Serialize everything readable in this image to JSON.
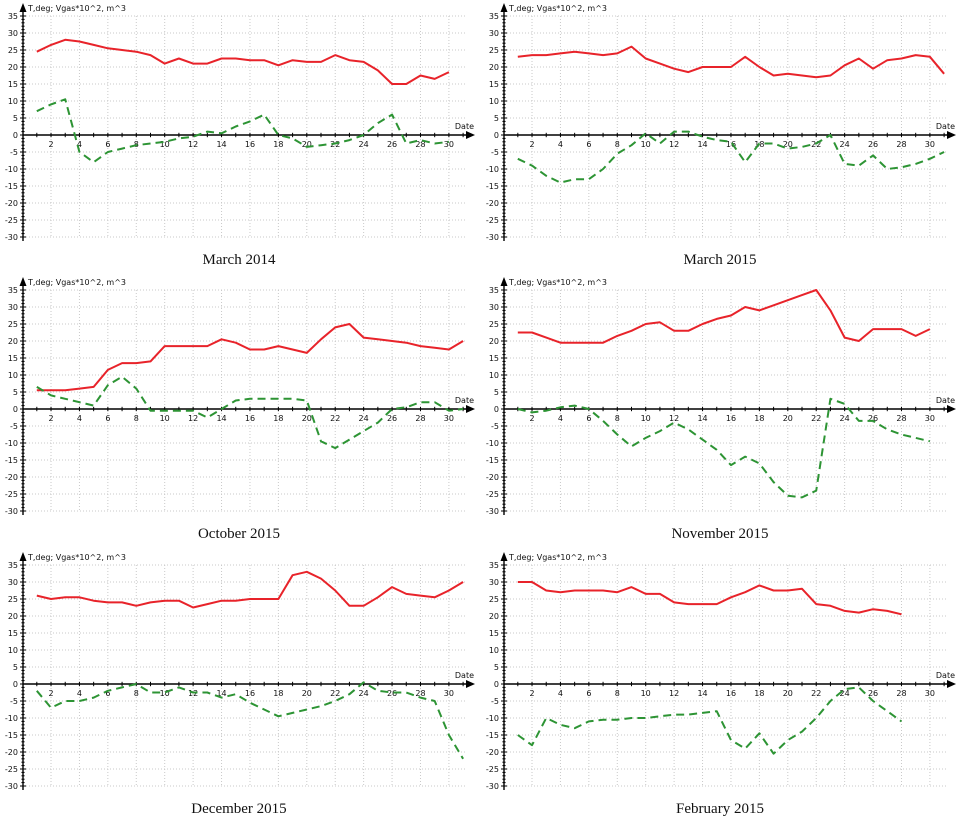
{
  "page": {
    "background": "#ffffff"
  },
  "colors": {
    "temperature_line": "#e8232a",
    "gas_line": "#2d9434",
    "grid": "#c9c9c9",
    "axis": "#000000",
    "tick_text": "#111111"
  },
  "axis": {
    "y_label": "T,deg; Vgas*10^2, m^3",
    "x_label": "Date",
    "x_tick_labels": [
      2,
      4,
      6,
      8,
      10,
      12,
      14,
      16,
      18,
      20,
      22,
      24,
      26,
      28,
      30
    ],
    "y_tick_labels": [
      35,
      30,
      25,
      20,
      15,
      10,
      5,
      0,
      -5,
      -10,
      -15,
      -20,
      -25,
      -30
    ],
    "x_tick_step": 2,
    "y_tick_step": 5
  },
  "chart_data": [
    {
      "type": "line",
      "title": "March 2014",
      "xlabel": "Date",
      "ylabel": "T,deg; Vgas*10^2, m^3",
      "xlim": [
        1,
        31
      ],
      "ylim": [
        -30,
        35
      ],
      "grid": true,
      "legend": "none",
      "x": [
        1,
        2,
        3,
        4,
        5,
        6,
        7,
        8,
        9,
        10,
        11,
        12,
        13,
        14,
        15,
        16,
        17,
        18,
        19,
        20,
        21,
        22,
        23,
        24,
        25,
        26,
        27,
        28,
        29,
        30
      ],
      "series": [
        {
          "name": "T,deg",
          "color": "#e8232a",
          "style": "solid",
          "values": [
            24.5,
            26.5,
            28,
            27.5,
            26.5,
            25.5,
            25,
            24.5,
            23.5,
            21,
            22.5,
            21,
            21,
            22.5,
            22.5,
            22,
            22,
            20.5,
            22,
            21.5,
            21.5,
            23.5,
            22,
            21.5,
            19,
            15,
            15,
            17.5,
            16.5,
            18.5
          ]
        },
        {
          "name": "Vgas*10^2, m^3",
          "color": "#2d9434",
          "style": "dashed",
          "values": [
            7,
            9,
            10.5,
            -5,
            -8,
            -5,
            -4,
            -3,
            -2.5,
            -2,
            -1,
            -0.5,
            1,
            0.5,
            2.5,
            4,
            6,
            0,
            -1,
            -3.5,
            -3,
            -2.5,
            -1.5,
            0,
            3.5,
            6,
            -2.5,
            -1.5,
            -2.5,
            -2
          ]
        }
      ]
    },
    {
      "type": "line",
      "title": "March 2015",
      "xlabel": "Date",
      "ylabel": "T,deg; Vgas*10^2, m^3",
      "xlim": [
        1,
        31
      ],
      "ylim": [
        -30,
        35
      ],
      "grid": true,
      "legend": "none",
      "x": [
        1,
        2,
        3,
        4,
        5,
        6,
        7,
        8,
        9,
        10,
        11,
        12,
        13,
        14,
        15,
        16,
        17,
        18,
        19,
        20,
        21,
        22,
        23,
        24,
        25,
        26,
        27,
        28,
        29,
        30,
        31
      ],
      "series": [
        {
          "name": "T,deg",
          "color": "#e8232a",
          "style": "solid",
          "values": [
            23,
            23.5,
            23.5,
            24,
            24.5,
            24,
            23.5,
            24,
            26,
            22.5,
            21,
            19.5,
            18.5,
            20,
            20,
            20,
            23,
            20,
            17.5,
            18,
            17.5,
            17,
            17.5,
            20.5,
            22.5,
            19.5,
            22,
            22.5,
            23.5,
            23,
            18
          ]
        },
        {
          "name": "Vgas*10^2, m^3",
          "color": "#2d9434",
          "style": "dashed",
          "values": [
            -7,
            -9,
            -12,
            -14,
            -13,
            -13,
            -10,
            -5.5,
            -3,
            0.5,
            -2.5,
            1,
            1,
            -0.5,
            -1.5,
            -2,
            -8,
            -2.5,
            -2.5,
            -4,
            -3.5,
            -2.5,
            0,
            -8.5,
            -9,
            -6,
            -10,
            -9.5,
            -8.5,
            -7,
            -5
          ]
        }
      ]
    },
    {
      "type": "line",
      "title": "October 2015",
      "xlabel": "Date",
      "ylabel": "T,deg; Vgas*10^2, m^3",
      "xlim": [
        1,
        31
      ],
      "ylim": [
        -30,
        35
      ],
      "grid": true,
      "legend": "none",
      "x": [
        1,
        2,
        3,
        4,
        5,
        6,
        7,
        8,
        9,
        10,
        11,
        12,
        13,
        14,
        15,
        16,
        17,
        18,
        19,
        20,
        21,
        22,
        23,
        24,
        25,
        26,
        27,
        28,
        29,
        30,
        31
      ],
      "series": [
        {
          "name": "T,deg",
          "color": "#e8232a",
          "style": "solid",
          "values": [
            5.5,
            5.5,
            5.5,
            6,
            6.5,
            11.5,
            13.5,
            13.5,
            14,
            18.5,
            18.5,
            18.5,
            18.5,
            20.5,
            19.5,
            17.5,
            17.5,
            18.5,
            17.5,
            16.5,
            20.5,
            24,
            25,
            21,
            20.5,
            20,
            19.5,
            18.5,
            18,
            17.5,
            20
          ]
        },
        {
          "name": "Vgas*10^2, m^3",
          "color": "#2d9434",
          "style": "dashed",
          "values": [
            6.5,
            4,
            3,
            2,
            1,
            7,
            9.5,
            6,
            -0.5,
            -0.5,
            -0.5,
            -0.5,
            -2.5,
            0,
            2.5,
            3,
            3,
            3,
            3,
            2.5,
            -9.5,
            -11.5,
            -9,
            -6.5,
            -4,
            0,
            0.5,
            2,
            2,
            -0.5,
            0
          ]
        }
      ]
    },
    {
      "type": "line",
      "title": "November 2015",
      "xlabel": "Date",
      "ylabel": "T,deg; Vgas*10^2, m^3",
      "xlim": [
        1,
        31
      ],
      "ylim": [
        -30,
        35
      ],
      "grid": true,
      "legend": "none",
      "x": [
        1,
        2,
        3,
        4,
        5,
        6,
        7,
        8,
        9,
        10,
        11,
        12,
        13,
        14,
        15,
        16,
        17,
        18,
        19,
        20,
        21,
        22,
        23,
        24,
        25,
        26,
        27,
        28,
        29,
        30
      ],
      "series": [
        {
          "name": "T,deg",
          "color": "#e8232a",
          "style": "solid",
          "values": [
            22.5,
            22.5,
            21,
            19.5,
            19.5,
            19.5,
            19.5,
            21.5,
            23,
            25,
            25.5,
            23,
            23,
            25,
            26.5,
            27.5,
            30,
            29,
            30.5,
            32,
            33.5,
            35,
            29,
            21,
            20,
            23.5,
            23.5,
            23.5,
            21.5,
            23.5
          ]
        },
        {
          "name": "Vgas*10^2, m^3",
          "color": "#2d9434",
          "style": "dashed",
          "values": [
            0,
            -1,
            -0.5,
            0.5,
            1,
            0,
            -3.5,
            -7.5,
            -11,
            -8.5,
            -6.5,
            -4,
            -6,
            -9,
            -12,
            -16.5,
            -14,
            -16,
            -21.5,
            -25.5,
            -26,
            -24,
            3,
            1.5,
            -3.5,
            -3.5,
            -6,
            -7.5,
            -8.5,
            -9.5
          ]
        }
      ]
    },
    {
      "type": "line",
      "title": "December 2015",
      "xlabel": "Date",
      "ylabel": "T,deg; Vgas*10^2, m^3",
      "xlim": [
        1,
        31
      ],
      "ylim": [
        -30,
        35
      ],
      "grid": true,
      "legend": "none",
      "x": [
        1,
        2,
        3,
        4,
        5,
        6,
        7,
        8,
        9,
        10,
        11,
        12,
        13,
        14,
        15,
        16,
        17,
        18,
        19,
        20,
        21,
        22,
        23,
        24,
        25,
        26,
        27,
        28,
        29,
        30,
        31
      ],
      "series": [
        {
          "name": "T,deg",
          "color": "#e8232a",
          "style": "solid",
          "values": [
            26,
            25,
            25.5,
            25.5,
            24.5,
            24,
            24,
            23,
            24,
            24.5,
            24.5,
            22.5,
            23.5,
            24.5,
            24.5,
            25,
            25,
            25,
            32,
            33,
            31,
            27.5,
            23,
            23,
            25.5,
            28.5,
            26.5,
            26,
            25.5,
            27.5,
            30
          ]
        },
        {
          "name": "Vgas*10^2, m^3",
          "color": "#2d9434",
          "style": "dashed",
          "values": [
            -2,
            -7,
            -5,
            -5,
            -4,
            -2,
            -1,
            0,
            -2.5,
            -2.5,
            -1,
            -2.5,
            -2.5,
            -4,
            -3,
            -5.5,
            -7.5,
            -9.5,
            -8.5,
            -7.5,
            -6.5,
            -5,
            -3,
            0.5,
            -2,
            -2.5,
            -2.5,
            -4,
            -5,
            -15,
            -22
          ]
        }
      ]
    },
    {
      "type": "line",
      "title": "February 2015",
      "xlabel": "Date",
      "ylabel": "T,deg; Vgas*10^2, m^3",
      "xlim": [
        1,
        31
      ],
      "ylim": [
        -30,
        35
      ],
      "grid": true,
      "legend": "none",
      "x": [
        1,
        2,
        3,
        4,
        5,
        6,
        7,
        8,
        9,
        10,
        11,
        12,
        13,
        14,
        15,
        16,
        17,
        18,
        19,
        20,
        21,
        22,
        23,
        24,
        25,
        26,
        27,
        28
      ],
      "series": [
        {
          "name": "T,deg",
          "color": "#e8232a",
          "style": "solid",
          "values": [
            30,
            30,
            27.5,
            27,
            27.5,
            27.5,
            27.5,
            27,
            28.5,
            26.5,
            26.5,
            24,
            23.5,
            23.5,
            23.5,
            25.5,
            27,
            29,
            27.5,
            27.5,
            28,
            23.5,
            23,
            21.5,
            21,
            22,
            21.5,
            20.5
          ]
        },
        {
          "name": "Vgas*10^2, m^3",
          "color": "#2d9434",
          "style": "dashed",
          "values": [
            -15,
            -18,
            -10,
            -12,
            -13,
            -11,
            -10.5,
            -10.5,
            -10,
            -10,
            -9.5,
            -9,
            -9,
            -8.5,
            -8,
            -16.5,
            -19,
            -14.5,
            -20.5,
            -16.5,
            -14,
            -10,
            -5,
            -1.5,
            -1,
            -5,
            -8,
            -11
          ]
        }
      ]
    }
  ]
}
